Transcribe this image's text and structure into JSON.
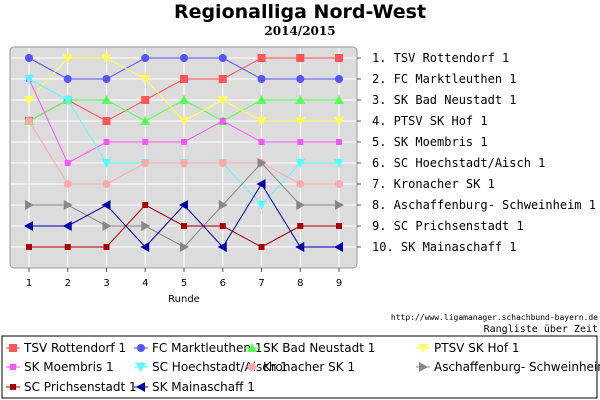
{
  "chart_data": {
    "type": "line",
    "title": "Regionalliga Nord-West",
    "subtitle": "2014/2015",
    "xlabel": "Runde",
    "ylabel": "",
    "x": [
      1,
      2,
      3,
      4,
      5,
      6,
      7,
      8,
      9
    ],
    "ylim": [
      1,
      10
    ],
    "y_inverted": true,
    "grid": true,
    "legend_position": "bottom",
    "source_text": "http://www.ligamanager.schachbund-bayern.de",
    "note_text": "Rangliste über Zeit",
    "final_ranking": [
      "1. TSV Rottendorf 1",
      "2. FC Marktleuthen 1",
      "3. SK Bad Neustadt 1",
      "4. PTSV SK Hof 1",
      "5. SK Moembris 1",
      "6. SC Hoechstadt/Aisch 1",
      "7. Kronacher SK 1",
      "8. Aschaffenburg- Schweinheim 1",
      "9. SC Prichsenstadt 1",
      "10. SK Mainaschaff 1"
    ],
    "series": [
      {
        "name": "TSV Rottendorf 1",
        "color": "#ff5555",
        "marker": "square",
        "values": [
          4,
          3,
          4,
          3,
          2,
          2,
          1,
          1,
          1
        ]
      },
      {
        "name": "FC Marktleuthen 1",
        "color": "#5555ff",
        "marker": "circle",
        "values": [
          1,
          2,
          2,
          1,
          1,
          1,
          2,
          2,
          2
        ]
      },
      {
        "name": "SK Bad Neustadt 1",
        "color": "#55ff55",
        "marker": "triangle-up",
        "values": [
          4,
          3,
          3,
          4,
          3,
          4,
          3,
          3,
          3
        ]
      },
      {
        "name": "PTSV SK Hof 1",
        "color": "#ffff55",
        "marker": "triangle-down",
        "values": [
          3,
          1,
          1,
          2,
          4,
          3,
          4,
          4,
          4
        ]
      },
      {
        "name": "SK Moembris 1",
        "color": "#ff55ff",
        "marker": "square-sm",
        "values": [
          2,
          6,
          5,
          5,
          5,
          4,
          5,
          5,
          5
        ]
      },
      {
        "name": "SC Hoechstadt/Aisch 1",
        "color": "#55ffff",
        "marker": "triangle-down",
        "values": [
          2,
          3,
          6,
          6,
          6,
          6,
          8,
          6,
          6
        ]
      },
      {
        "name": "Kronacher SK 1",
        "color": "#ffaaaa",
        "marker": "circle",
        "values": [
          4,
          7,
          7,
          6,
          6,
          6,
          6,
          7,
          7
        ]
      },
      {
        "name": "Aschaffenburg- Schweinheim 1",
        "color": "#888888",
        "marker": "triangle-right",
        "values": [
          8,
          8,
          9,
          9,
          10,
          8,
          6,
          8,
          8
        ]
      },
      {
        "name": "SC Prichsenstadt 1",
        "color": "#aa0000",
        "marker": "square-sm",
        "values": [
          10,
          10,
          10,
          8,
          9,
          9,
          10,
          9,
          9
        ]
      },
      {
        "name": "SK Mainaschaff 1",
        "color": "#0000aa",
        "marker": "triangle-left",
        "values": [
          9,
          9,
          8,
          10,
          8,
          10,
          7,
          10,
          10
        ]
      }
    ]
  }
}
